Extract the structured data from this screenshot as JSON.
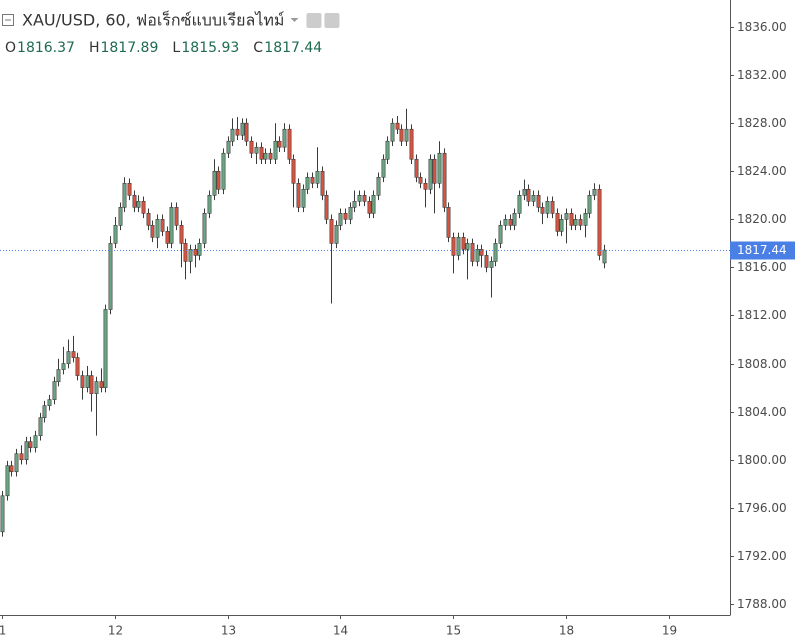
{
  "chart_data": {
    "type": "candlestick",
    "title": "XAU/USD, 60, ฟอเร็กซ์แบบเรียลไทม์",
    "legend_labels": [
      "O",
      "H",
      "L",
      "C"
    ],
    "up_color": "#6ba583",
    "down_color": "#d75442",
    "wick_color": "#3b3b3b",
    "last_price_color": "#4a7fe6",
    "open": [
      1794.0,
      1797.0,
      1799.5,
      1799.0,
      1800.5,
      1800.0,
      1801.5,
      1801.0,
      1802.0,
      1803.5,
      1804.5,
      1805.0,
      1806.5,
      1807.5,
      1808.0,
      1809.0,
      1808.5,
      1807.0,
      1806.0,
      1807.0,
      1805.5,
      1806.5,
      1806.0,
      1812.5,
      1818.0,
      1819.5,
      1821.0,
      1823.0,
      1822.0,
      1821.0,
      1821.5,
      1820.5,
      1819.5,
      1818.5,
      1820.0,
      1819.0,
      1818.0,
      1821.0,
      1819.5,
      1818.0,
      1816.5,
      1817.5,
      1817.0,
      1818.0,
      1820.5,
      1822.0,
      1824.0,
      1822.5,
      1825.5,
      1826.5,
      1827.5,
      1827.0,
      1828.0,
      1826.5,
      1825.5,
      1826.0,
      1825.0,
      1825.5,
      1825.0,
      1826.5,
      1826.0,
      1827.5,
      1825.0,
      1823.0,
      1821.0,
      1822.5,
      1823.5,
      1823.0,
      1824.0,
      1822.0,
      1820.0,
      1818.0,
      1819.5,
      1820.5,
      1820.0,
      1821.0,
      1821.5,
      1822.0,
      1821.5,
      1820.5,
      1822.0,
      1823.5,
      1825.0,
      1826.5,
      1828.0,
      1827.5,
      1826.5,
      1827.5,
      1825.0,
      1823.5,
      1823.0,
      1822.5,
      1825.0,
      1823.0,
      1825.5,
      1821.0,
      1818.5,
      1817.0,
      1818.5,
      1817.5,
      1818.0,
      1816.5,
      1817.5,
      1817.0,
      1816.0,
      1816.5,
      1818.0,
      1819.5,
      1820.0,
      1819.5,
      1820.5,
      1822.0,
      1822.5,
      1821.5,
      1822.0,
      1821.0,
      1820.5,
      1821.5,
      1820.5,
      1819.0,
      1820.0,
      1820.5,
      1819.5,
      1820.0,
      1819.5,
      1820.5,
      1822.0,
      1822.5,
      1816.37
    ],
    "high": [
      1797.4,
      1799.9,
      1799.9,
      1800.9,
      1801.2,
      1801.9,
      1801.9,
      1802.4,
      1803.9,
      1804.9,
      1805.4,
      1806.9,
      1808.4,
      1809.4,
      1810.0,
      1810.3,
      1808.9,
      1807.4,
      1807.8,
      1807.4,
      1806.9,
      1807.6,
      1812.9,
      1818.6,
      1820.2,
      1821.4,
      1823.5,
      1823.4,
      1822.4,
      1822.0,
      1821.9,
      1820.9,
      1819.9,
      1820.4,
      1820.4,
      1819.4,
      1821.4,
      1821.4,
      1819.9,
      1818.4,
      1817.9,
      1817.9,
      1818.4,
      1820.9,
      1822.4,
      1825.0,
      1824.4,
      1825.9,
      1826.9,
      1828.4,
      1828.5,
      1828.4,
      1828.4,
      1826.9,
      1826.4,
      1826.4,
      1825.9,
      1825.9,
      1828.0,
      1826.9,
      1828.0,
      1827.9,
      1825.4,
      1823.4,
      1822.9,
      1823.9,
      1823.9,
      1826.0,
      1824.4,
      1822.4,
      1820.4,
      1819.9,
      1820.9,
      1820.9,
      1821.4,
      1822.4,
      1822.4,
      1822.4,
      1821.9,
      1822.4,
      1823.9,
      1825.4,
      1826.9,
      1828.4,
      1828.6,
      1827.9,
      1829.2,
      1827.9,
      1825.4,
      1823.9,
      1823.4,
      1825.4,
      1825.4,
      1826.5,
      1825.9,
      1821.4,
      1818.9,
      1818.9,
      1818.9,
      1818.4,
      1818.4,
      1817.9,
      1817.9,
      1817.4,
      1816.9,
      1818.4,
      1819.9,
      1820.4,
      1820.4,
      1820.9,
      1822.4,
      1823.3,
      1822.9,
      1822.4,
      1822.4,
      1821.4,
      1821.9,
      1821.9,
      1820.9,
      1820.4,
      1820.9,
      1820.9,
      1820.4,
      1820.4,
      1820.9,
      1822.4,
      1823.0,
      1822.9,
      1817.89
    ],
    "low": [
      1793.6,
      1796.6,
      1798.6,
      1798.6,
      1799.6,
      1799.6,
      1800.6,
      1800.6,
      1801.6,
      1803.1,
      1804.1,
      1804.6,
      1806.1,
      1807.1,
      1807.6,
      1808.1,
      1806.6,
      1805.0,
      1805.6,
      1804.0,
      1802.0,
      1805.6,
      1805.6,
      1812.1,
      1817.6,
      1819.1,
      1820.6,
      1821.6,
      1820.6,
      1820.6,
      1820.1,
      1819.1,
      1818.1,
      1817.6,
      1818.6,
      1817.6,
      1817.6,
      1819.1,
      1816.0,
      1815.0,
      1815.5,
      1816.0,
      1816.6,
      1817.6,
      1820.1,
      1821.6,
      1822.1,
      1822.1,
      1825.1,
      1826.1,
      1826.6,
      1826.6,
      1826.1,
      1825.1,
      1824.6,
      1824.6,
      1824.6,
      1824.6,
      1824.6,
      1825.6,
      1825.6,
      1824.6,
      1821.0,
      1820.6,
      1820.6,
      1822.1,
      1822.6,
      1822.6,
      1821.6,
      1819.6,
      1813.0,
      1817.6,
      1819.1,
      1819.6,
      1819.6,
      1820.6,
      1821.1,
      1821.1,
      1820.1,
      1820.1,
      1821.6,
      1823.1,
      1824.6,
      1826.1,
      1827.1,
      1826.1,
      1826.1,
      1824.6,
      1823.1,
      1822.6,
      1821.0,
      1822.1,
      1820.5,
      1822.6,
      1820.6,
      1818.1,
      1815.5,
      1816.6,
      1817.1,
      1815.0,
      1816.1,
      1816.1,
      1816.0,
      1815.6,
      1813.5,
      1816.1,
      1817.6,
      1819.1,
      1819.1,
      1819.1,
      1820.1,
      1821.6,
      1821.1,
      1821.1,
      1820.6,
      1819.6,
      1820.1,
      1820.1,
      1818.6,
      1818.6,
      1818.0,
      1819.1,
      1819.1,
      1819.1,
      1818.5,
      1820.1,
      1821.6,
      1816.6,
      1815.93
    ],
    "close": [
      1797.0,
      1799.5,
      1799.0,
      1800.5,
      1800.0,
      1801.5,
      1801.0,
      1802.0,
      1803.5,
      1804.5,
      1805.0,
      1806.5,
      1807.5,
      1808.0,
      1809.0,
      1808.5,
      1807.0,
      1806.0,
      1807.0,
      1805.5,
      1806.5,
      1806.0,
      1812.5,
      1818.0,
      1819.5,
      1821.0,
      1823.0,
      1822.0,
      1821.0,
      1821.5,
      1820.5,
      1819.5,
      1818.5,
      1820.0,
      1819.0,
      1818.0,
      1821.0,
      1819.5,
      1818.0,
      1816.5,
      1817.5,
      1817.0,
      1818.0,
      1820.5,
      1822.0,
      1824.0,
      1822.5,
      1825.5,
      1826.5,
      1827.5,
      1827.0,
      1828.0,
      1826.5,
      1825.5,
      1826.0,
      1825.0,
      1825.5,
      1825.0,
      1826.5,
      1826.0,
      1827.5,
      1825.0,
      1823.0,
      1821.0,
      1822.5,
      1823.5,
      1823.0,
      1824.0,
      1822.0,
      1820.0,
      1818.0,
      1819.5,
      1820.5,
      1820.0,
      1821.0,
      1821.5,
      1822.0,
      1821.5,
      1820.5,
      1822.0,
      1823.5,
      1825.0,
      1826.5,
      1828.0,
      1827.5,
      1826.5,
      1827.5,
      1825.0,
      1823.5,
      1823.0,
      1822.5,
      1825.0,
      1823.0,
      1825.5,
      1821.0,
      1818.5,
      1817.0,
      1818.5,
      1817.5,
      1818.0,
      1816.5,
      1817.5,
      1817.0,
      1816.0,
      1816.5,
      1818.0,
      1819.5,
      1820.0,
      1819.5,
      1820.5,
      1822.0,
      1822.5,
      1821.5,
      1822.0,
      1821.0,
      1820.5,
      1821.5,
      1820.5,
      1819.0,
      1820.0,
      1820.5,
      1819.5,
      1820.0,
      1819.5,
      1820.5,
      1822.0,
      1822.5,
      1817.0,
      1817.44
    ],
    "xlim": [
      -0.43,
      154.9
    ],
    "xticks": [
      {
        "value": 0,
        "label": "1"
      },
      {
        "value": 24,
        "label": "12"
      },
      {
        "value": 48,
        "label": "13"
      },
      {
        "value": 72,
        "label": "14"
      },
      {
        "value": 96,
        "label": "15"
      },
      {
        "value": 120,
        "label": "18"
      },
      {
        "value": 142,
        "label": "19"
      }
    ],
    "ylim": [
      1787.08,
      1838.25
    ],
    "yticks": [
      {
        "value": 1788,
        "label": "1788.00"
      },
      {
        "value": 1792,
        "label": "1792.00"
      },
      {
        "value": 1796,
        "label": "1796.00"
      },
      {
        "value": 1800,
        "label": "1800.00"
      },
      {
        "value": 1804,
        "label": "1804.00"
      },
      {
        "value": 1808,
        "label": "1808.00"
      },
      {
        "value": 1812,
        "label": "1812.00"
      },
      {
        "value": 1816,
        "label": "1816.00"
      },
      {
        "value": 1820,
        "label": "1820.00"
      },
      {
        "value": 1824,
        "label": "1824.00"
      },
      {
        "value": 1828,
        "label": "1828.00"
      },
      {
        "value": 1832,
        "label": "1832.00"
      },
      {
        "value": 1836,
        "label": "1836.00"
      }
    ]
  }
}
